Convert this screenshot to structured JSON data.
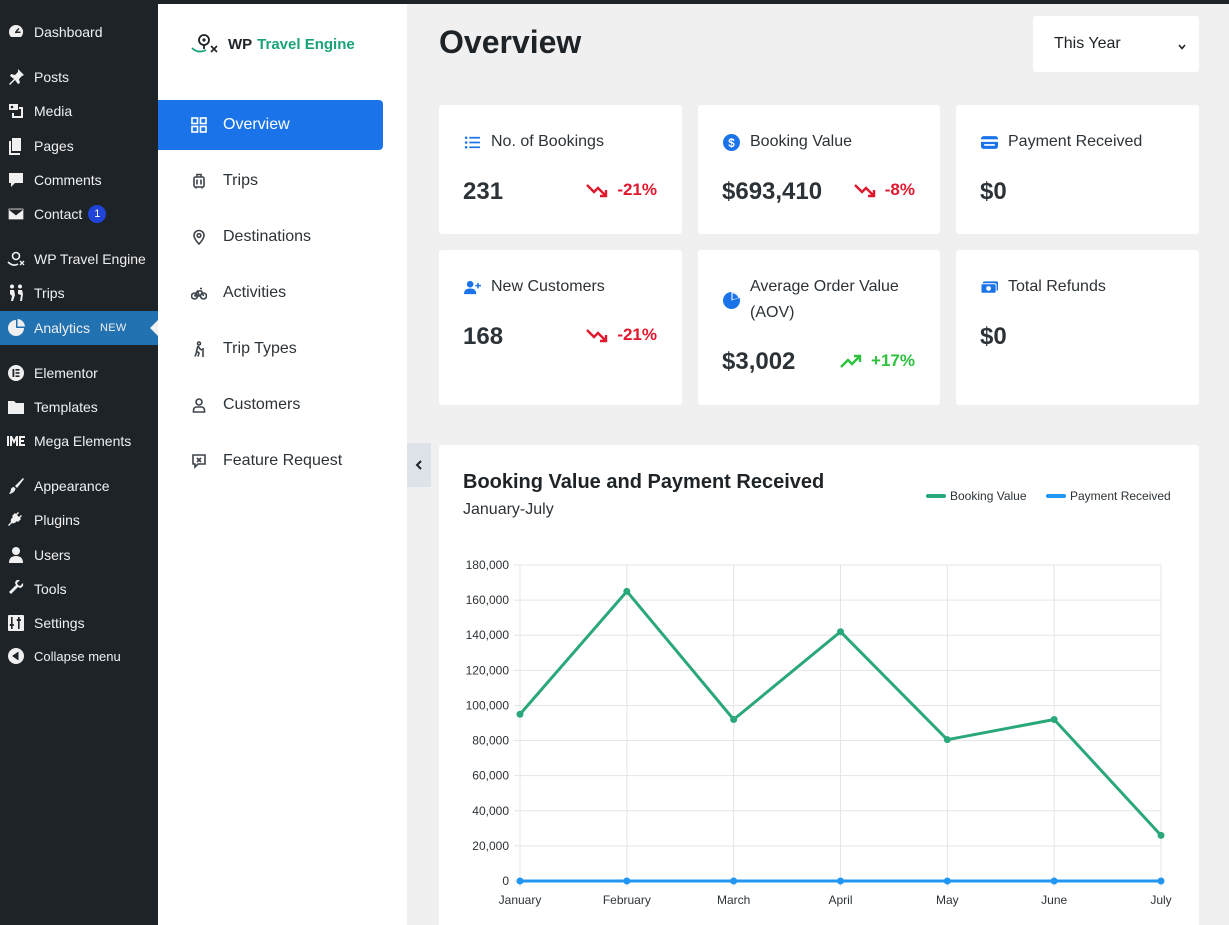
{
  "wp_menu": {
    "items": [
      {
        "label": "Dashboard",
        "icon": "dashboard-icon"
      },
      {
        "label": "Posts",
        "icon": "pin-icon"
      },
      {
        "label": "Media",
        "icon": "media-icon"
      },
      {
        "label": "Pages",
        "icon": "pages-icon"
      },
      {
        "label": "Comments",
        "icon": "comment-icon"
      },
      {
        "label": "Contact",
        "icon": "mail-icon",
        "badge": "1"
      },
      {
        "label": "WP Travel Engine",
        "icon": "travel-engine-icon"
      },
      {
        "label": "Trips",
        "icon": "hikers-icon"
      },
      {
        "label": "Analytics",
        "icon": "pie-icon",
        "tag": "NEW"
      },
      {
        "label": "Elementor",
        "icon": "elementor-icon"
      },
      {
        "label": "Templates",
        "icon": "folder-icon"
      },
      {
        "label": "Mega Elements",
        "icon": "mega-elements-icon"
      },
      {
        "label": "Appearance",
        "icon": "brush-icon"
      },
      {
        "label": "Plugins",
        "icon": "plug-icon"
      },
      {
        "label": "Users",
        "icon": "user-icon"
      },
      {
        "label": "Tools",
        "icon": "wrench-icon"
      },
      {
        "label": "Settings",
        "icon": "settings-icon"
      },
      {
        "label": "Collapse menu",
        "icon": "collapse-icon"
      }
    ]
  },
  "brand": {
    "name_part1": "WP",
    "name_part2": "Travel Engine"
  },
  "plugin_nav": {
    "items": [
      {
        "label": "Overview",
        "icon": "grid-icon"
      },
      {
        "label": "Trips",
        "icon": "luggage-icon"
      },
      {
        "label": "Destinations",
        "icon": "location-pin-icon"
      },
      {
        "label": "Activities",
        "icon": "bicycle-icon"
      },
      {
        "label": "Trip Types",
        "icon": "hiker-icon"
      },
      {
        "label": "Customers",
        "icon": "person-icon"
      },
      {
        "label": "Feature Request",
        "icon": "feature-request-icon"
      }
    ]
  },
  "header": {
    "title": "Overview",
    "period": "This Year"
  },
  "cards": {
    "bookings": {
      "label": "No. of Bookings",
      "value": "231",
      "trend": "-21%"
    },
    "booking_value": {
      "label": "Booking Value",
      "value": "$693,410",
      "trend": "-8%"
    },
    "payment_received": {
      "label": "Payment Received",
      "value": "$0"
    },
    "new_customers": {
      "label": "New Customers",
      "value": "168",
      "trend": "-21%"
    },
    "aov": {
      "label": "Average Order Value (AOV)",
      "value": "$3,002",
      "trend": "+17%"
    },
    "refunds": {
      "label": "Total Refunds",
      "value": "$0"
    }
  },
  "colors": {
    "accent_blue": "#1a73e8",
    "trend_down": "#e0182d",
    "trend_up": "#2dc23e",
    "booking_series": "#2aa879",
    "payment_series": "#2196f3"
  },
  "chart_data": {
    "type": "line",
    "title": "Booking Value and Payment Received",
    "subtitle": "January-July",
    "categories": [
      "January",
      "February",
      "March",
      "April",
      "May",
      "June",
      "July"
    ],
    "series": [
      {
        "name": "Booking Value",
        "values": [
          95000,
          165000,
          92000,
          142000,
          80500,
          92000,
          26000
        ]
      },
      {
        "name": "Payment Received",
        "values": [
          0,
          0,
          0,
          0,
          0,
          0,
          0
        ]
      }
    ],
    "ylim": [
      0,
      180000
    ],
    "yticks": [
      "0",
      "20,000",
      "40,000",
      "60,000",
      "80,000",
      "100,000",
      "120,000",
      "140,000",
      "160,000",
      "180,000"
    ],
    "grid": true,
    "legend": "top-right"
  }
}
